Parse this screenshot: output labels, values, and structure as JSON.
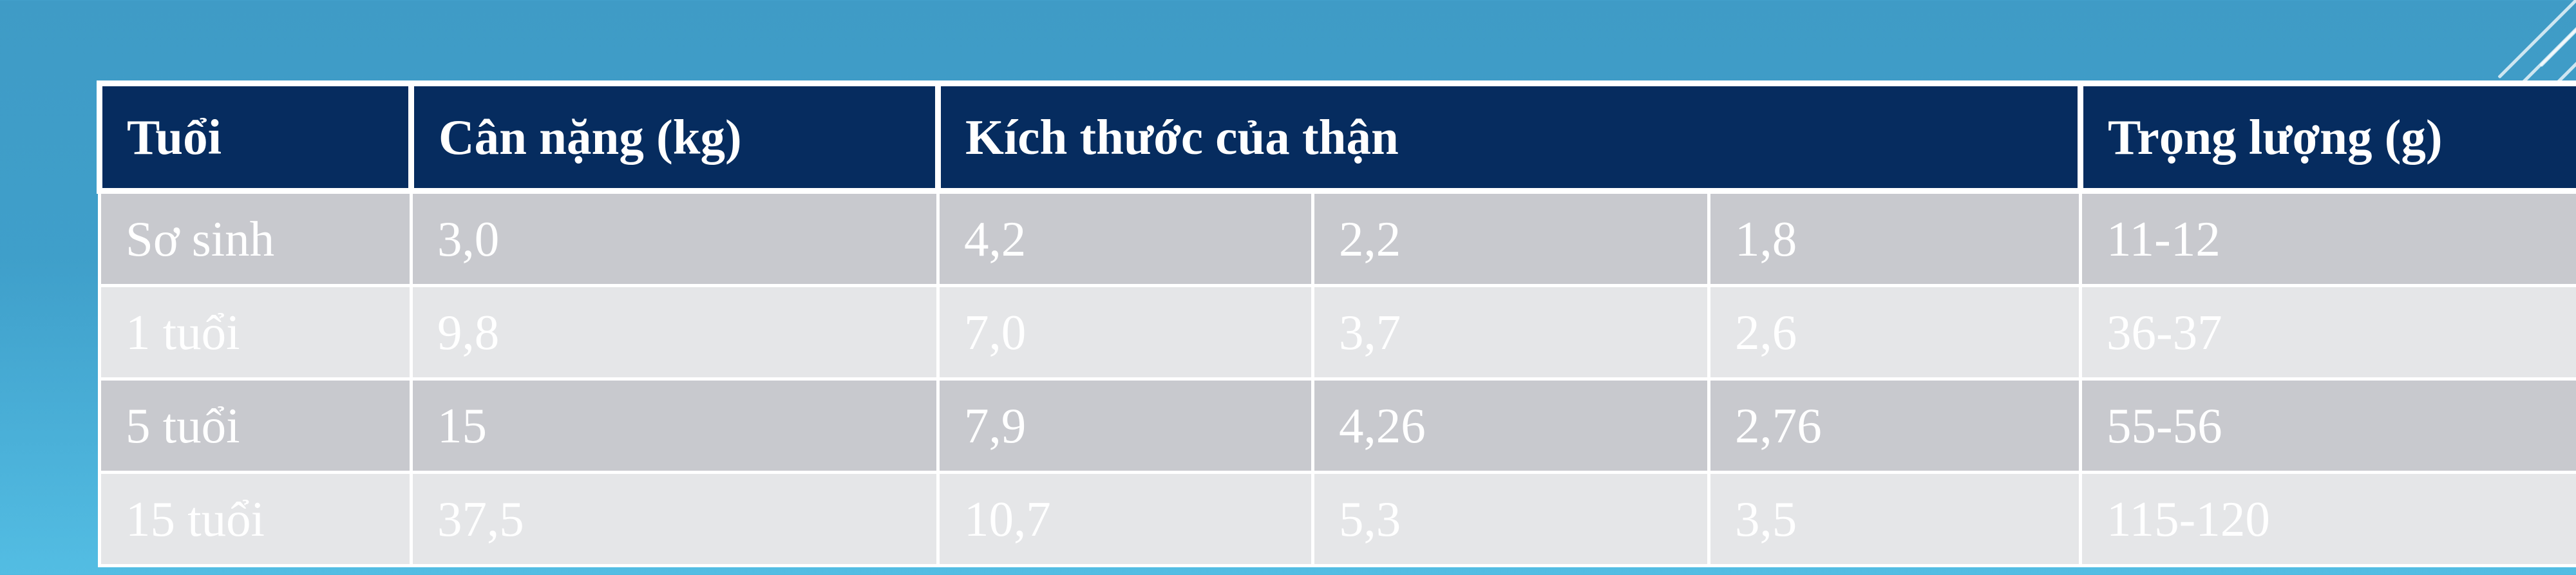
{
  "table": {
    "headers": [
      {
        "label": "Tuổi",
        "colspan": 1
      },
      {
        "label": "Cân nặng (kg)",
        "colspan": 1
      },
      {
        "label": "Kích thước của thận",
        "colspan": 3
      },
      {
        "label": "Trọng lượng (g)",
        "colspan": 1
      }
    ],
    "rows": [
      [
        "Sơ sinh",
        "3,0",
        "4,2",
        "2,2",
        "1,8",
        "11-12"
      ],
      [
        "1 tuổi",
        "9,8",
        "7,0",
        "3,7",
        "2,6",
        "36-37"
      ],
      [
        "5 tuổi",
        "15",
        "7,9",
        "4,26",
        "2,76",
        "55-56"
      ],
      [
        "15 tuổi",
        "37,5",
        "10,7",
        "5,3",
        "3,5",
        "115-120"
      ]
    ]
  },
  "colors": {
    "header_bg": "#062c5f",
    "row_odd_bg": "#c8c9ce",
    "row_even_bg": "#e5e6e8",
    "text": "#ffffff",
    "background": "#3f9fca"
  }
}
